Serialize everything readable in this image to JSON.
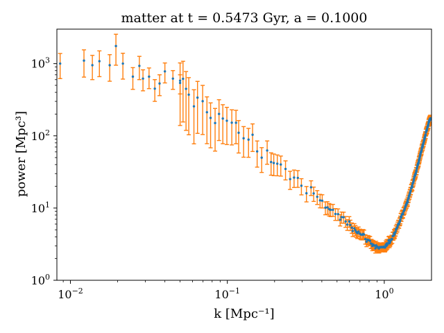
{
  "chart_data": {
    "type": "scatter",
    "title": "matter at t = 0.5473 Gyr, a = 0.1000",
    "xlabel": "k [Mpc⁻¹]",
    "ylabel": "power [Mpc³]",
    "xscale": "log",
    "yscale": "log",
    "xlim": [
      0.0082,
      2.0
    ],
    "ylim": [
      1,
      3000
    ],
    "grid": false,
    "x_ticks": [
      {
        "value": 0.01,
        "base": "10",
        "exp": "−2"
      },
      {
        "value": 0.1,
        "base": "10",
        "exp": "−1"
      },
      {
        "value": 1,
        "base": "10",
        "exp": "0"
      }
    ],
    "y_ticks": [
      {
        "value": 1,
        "base": "10",
        "exp": "0"
      },
      {
        "value": 10,
        "base": "10",
        "exp": "1"
      },
      {
        "value": 100,
        "base": "10",
        "exp": "2"
      },
      {
        "value": 1000,
        "base": "10",
        "exp": "3"
      }
    ],
    "colors": {
      "points": "#1f77b4",
      "errorbars": "#ff7f0e"
    },
    "trend": [
      {
        "k": 0.009,
        "power": 1000
      },
      {
        "k": 0.012,
        "power": 1100
      },
      {
        "k": 0.016,
        "power": 1050
      },
      {
        "k": 0.02,
        "power": 1000
      },
      {
        "k": 0.025,
        "power": 850
      },
      {
        "k": 0.03,
        "power": 700
      },
      {
        "k": 0.04,
        "power": 520
      },
      {
        "k": 0.05,
        "power": 420
      },
      {
        "k": 0.06,
        "power": 330
      },
      {
        "k": 0.07,
        "power": 270
      },
      {
        "k": 0.08,
        "power": 220
      },
      {
        "k": 0.1,
        "power": 150
      },
      {
        "k": 0.12,
        "power": 110
      },
      {
        "k": 0.15,
        "power": 75
      },
      {
        "k": 0.2,
        "power": 45
      },
      {
        "k": 0.25,
        "power": 30
      },
      {
        "k": 0.3,
        "power": 20
      },
      {
        "k": 0.4,
        "power": 12
      },
      {
        "k": 0.5,
        "power": 8
      },
      {
        "k": 0.6,
        "power": 6
      },
      {
        "k": 0.7,
        "power": 4.5
      },
      {
        "k": 0.8,
        "power": 3.5
      },
      {
        "k": 0.9,
        "power": 2.8
      },
      {
        "k": 1.0,
        "power": 2.8
      },
      {
        "k": 1.1,
        "power": 3.6
      },
      {
        "k": 1.2,
        "power": 5.2
      },
      {
        "k": 1.3,
        "power": 8
      },
      {
        "k": 1.4,
        "power": 12
      },
      {
        "k": 1.5,
        "power": 20
      },
      {
        "k": 1.6,
        "power": 33
      },
      {
        "k": 1.7,
        "power": 55
      },
      {
        "k": 1.8,
        "power": 90
      },
      {
        "k": 1.9,
        "power": 140
      },
      {
        "k": 1.95,
        "power": 170
      }
    ],
    "sample_points": [
      {
        "k": 0.0086,
        "power": 1000,
        "err_lo": 380,
        "err_hi": 380
      },
      {
        "k": 0.0122,
        "power": 1100,
        "err_lo": 450,
        "err_hi": 450
      },
      {
        "k": 0.0138,
        "power": 950,
        "err_lo": 350,
        "err_hi": 350
      },
      {
        "k": 0.0153,
        "power": 1080,
        "err_lo": 420,
        "err_hi": 420
      },
      {
        "k": 0.0178,
        "power": 950,
        "err_lo": 380,
        "err_hi": 380
      },
      {
        "k": 0.0195,
        "power": 1750,
        "err_lo": 800,
        "err_hi": 800
      },
      {
        "k": 0.0216,
        "power": 1000,
        "err_lo": 390,
        "err_hi": 390
      },
      {
        "k": 0.025,
        "power": 660,
        "err_lo": 220,
        "err_hi": 220
      },
      {
        "k": 0.0275,
        "power": 930,
        "err_lo": 330,
        "err_hi": 330
      },
      {
        "k": 0.029,
        "power": 620,
        "err_lo": 200,
        "err_hi": 200
      },
      {
        "k": 0.0317,
        "power": 660,
        "err_lo": 210,
        "err_hi": 210
      },
      {
        "k": 0.0345,
        "power": 450,
        "err_lo": 150,
        "err_hi": 150
      },
      {
        "k": 0.037,
        "power": 530,
        "err_lo": 170,
        "err_hi": 170
      },
      {
        "k": 0.04,
        "power": 780,
        "err_lo": 240,
        "err_hi": 240
      },
      {
        "k": 0.045,
        "power": 620,
        "err_lo": 180,
        "err_hi": 180
      },
      {
        "k": 0.05,
        "power": 540,
        "err_lo": 160,
        "err_hi": 160
      }
    ]
  }
}
